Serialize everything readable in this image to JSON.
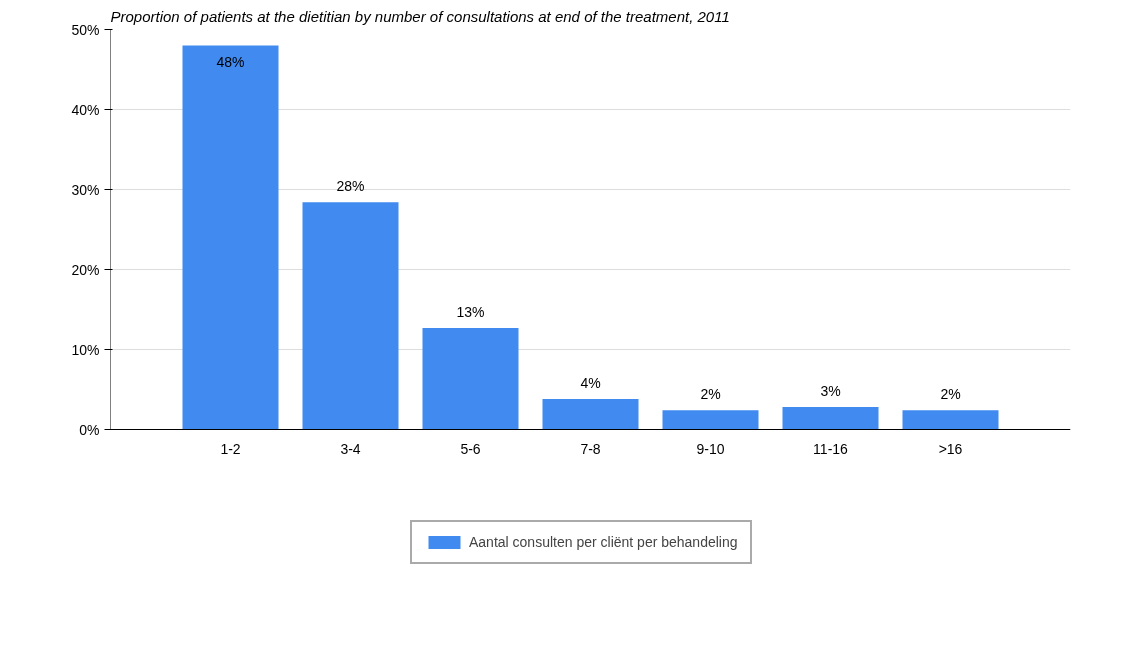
{
  "chart_data": {
    "type": "bar",
    "title": "Proportion of patients at the dietitian by number of consultations at end of the treatment, 2011",
    "categories": [
      "1-2",
      "3-4",
      "5-6",
      "7-8",
      "9-10",
      "11-16",
      ">16"
    ],
    "series": [
      {
        "name": "Aantal consulten per cliënt per behandeling",
        "color": "#418af0",
        "values": [
          48,
          28.4,
          12.7,
          3.8,
          2.4,
          2.8,
          2.4
        ],
        "value_labels": [
          "48%",
          "28%",
          "13%",
          "4%",
          "2%",
          "3%",
          "2%"
        ]
      }
    ],
    "ylim": [
      0,
      50
    ],
    "yticks": [
      {
        "value": 0,
        "label": "0%"
      },
      {
        "value": 10,
        "label": "10%"
      },
      {
        "value": 20,
        "label": "20%"
      },
      {
        "value": 30,
        "label": "30%"
      },
      {
        "value": 40,
        "label": "40%"
      },
      {
        "value": 50,
        "label": "50%"
      }
    ],
    "grid": "y",
    "legend": "bottom"
  }
}
